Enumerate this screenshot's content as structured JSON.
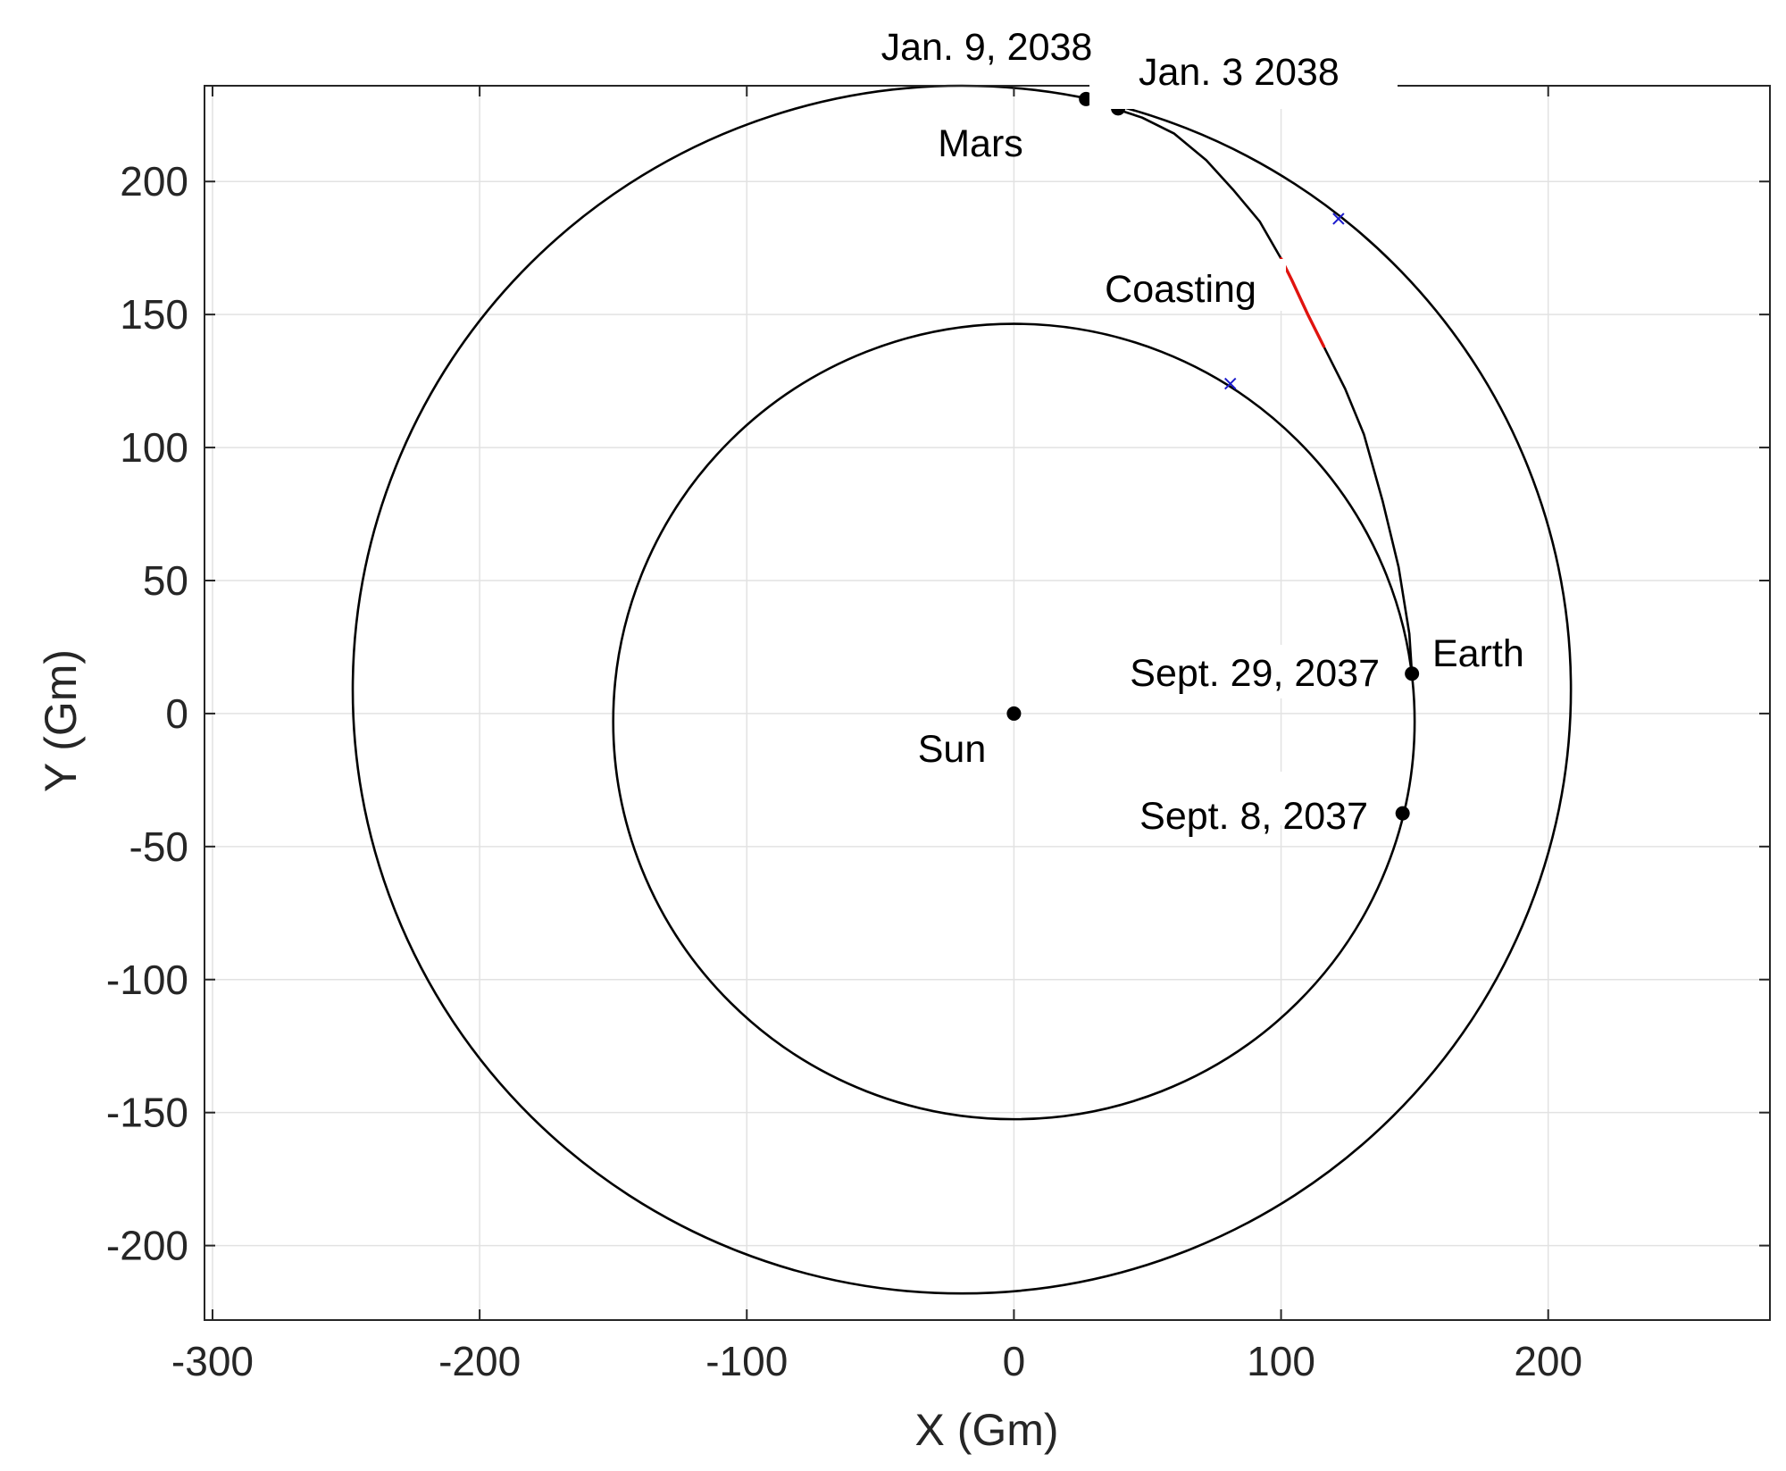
{
  "chart_data": {
    "type": "line",
    "xlabel": "X (Gm)",
    "ylabel": "Y (Gm)",
    "xlim": [
      -303,
      283
    ],
    "ylim": [
      -228,
      236
    ],
    "xticks": [
      -300,
      -200,
      -100,
      0,
      100,
      200
    ],
    "yticks": [
      -200,
      -150,
      -100,
      -50,
      0,
      50,
      100,
      150,
      200
    ],
    "xtick_labels": [
      "-300",
      "-200",
      "-100",
      "0",
      "100",
      "200"
    ],
    "ytick_labels": [
      "-200",
      "-150",
      "-100",
      "-50",
      "0",
      "50",
      "100",
      "150",
      "200"
    ],
    "grid": true,
    "orbits": [
      {
        "name": "",
        "center": [
          0,
          -3
        ],
        "radii": [
          150,
          149.5
        ]
      },
      {
        "name": "",
        "center": [
          -19.5,
          9
        ],
        "radii": [
          228,
          227
        ]
      }
    ],
    "trajectory": {
      "points": [
        [
          149,
          15
        ],
        [
          148,
          30
        ],
        [
          144,
          55
        ],
        [
          138,
          80
        ],
        [
          131,
          105
        ],
        [
          124,
          122
        ],
        [
          116,
          138
        ],
        [
          110,
          150
        ],
        [
          104,
          163
        ],
        [
          100,
          171
        ],
        [
          92,
          185
        ],
        [
          82,
          197
        ],
        [
          72,
          208
        ],
        [
          60,
          218
        ],
        [
          48,
          224
        ],
        [
          39,
          227
        ],
        [
          33,
          229.5
        ],
        [
          27,
          231
        ]
      ],
      "thrust_arc": {
        "start_index": 6,
        "end_index": 9,
        "color": "#e0140f"
      }
    },
    "points": [
      {
        "label": "Sun",
        "x": 0,
        "y": 0
      },
      {
        "label": "Sept. 8, 2037",
        "x": 145.5,
        "y": -37.5
      },
      {
        "label": "Sept. 29, 2037",
        "x": 149,
        "y": 15
      },
      {
        "label": "Jan. 3 2038",
        "x": 39,
        "y": 227.5
      },
      {
        "label": "Jan. 9, 2038",
        "x": 27,
        "y": 231
      }
    ],
    "crosses": [
      {
        "x": 81,
        "y": 124
      },
      {
        "x": 121.5,
        "y": 186
      }
    ],
    "annotations": {
      "mars": "Mars",
      "earth": "Earth",
      "coasting": "Coasting",
      "sun": "Sun",
      "sept8": "Sept. 8, 2037",
      "sept29": "Sept. 29, 2037",
      "jan3": "Jan. 3 2038",
      "jan9": "Jan. 9, 2038"
    },
    "colors": {
      "curve": "#000000",
      "thrust": "#e0140f",
      "marker": "#1a1acc",
      "grid": "#e2e2e2",
      "axis": "#262626"
    }
  }
}
